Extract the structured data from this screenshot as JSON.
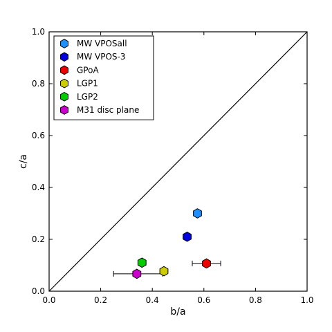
{
  "chart_data": {
    "type": "scatter",
    "xlabel": "b/a",
    "ylabel": "c/a",
    "xlim": [
      0.0,
      1.0
    ],
    "ylim": [
      0.0,
      1.0
    ],
    "xticks": [
      "0.0",
      "0.2",
      "0.4",
      "0.6",
      "0.8",
      "1.0"
    ],
    "yticks": [
      "0.0",
      "0.2",
      "0.4",
      "0.6",
      "0.8",
      "1.0"
    ],
    "grid": false,
    "legend_position": "top-left",
    "reference_line": {
      "from": [
        0,
        0
      ],
      "to": [
        1,
        1
      ],
      "color": "#000000"
    },
    "series": [
      {
        "name": "MW VPOSall",
        "color": "#1e8fff",
        "x": 0.575,
        "y": 0.3,
        "xerr": null
      },
      {
        "name": "MW VPOS-3",
        "color": "#0000dd",
        "x": 0.535,
        "y": 0.21,
        "xerr": null
      },
      {
        "name": "GPoA",
        "color": "#ee0000",
        "x": 0.61,
        "y": 0.107,
        "xerr": [
          0.555,
          0.665
        ]
      },
      {
        "name": "LGP1",
        "color": "#cccc00",
        "x": 0.445,
        "y": 0.077,
        "xerr": null
      },
      {
        "name": "LGP2",
        "color": "#00cc00",
        "x": 0.36,
        "y": 0.11,
        "xerr": null
      },
      {
        "name": "M31 disc plane",
        "color": "#cc00cc",
        "x": 0.34,
        "y": 0.067,
        "xerr": [
          0.25,
          0.44
        ]
      }
    ]
  }
}
